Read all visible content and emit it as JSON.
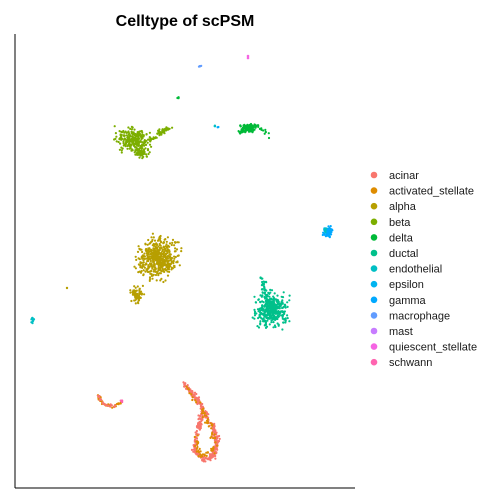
{
  "chart_data": {
    "type": "scatter",
    "title": "Celltype of scPSM",
    "xlabel": "",
    "ylabel": "",
    "grid": false,
    "legend_position": "right",
    "series": [
      {
        "name": "acinar",
        "color": "#F8766D"
      },
      {
        "name": "activated_stellate",
        "color": "#DE8C00"
      },
      {
        "name": "alpha",
        "color": "#B79F00"
      },
      {
        "name": "beta",
        "color": "#7CAE00"
      },
      {
        "name": "delta",
        "color": "#00BA38"
      },
      {
        "name": "ductal",
        "color": "#00C08B"
      },
      {
        "name": "endothelial",
        "color": "#00BFC4"
      },
      {
        "name": "epsilon",
        "color": "#00B4F0"
      },
      {
        "name": "gamma",
        "color": "#00A9FF"
      },
      {
        "name": "macrophage",
        "color": "#619CFF"
      },
      {
        "name": "mast",
        "color": "#C77CFF"
      },
      {
        "name": "quiescent_stellate",
        "color": "#F564E3"
      },
      {
        "name": "schwann",
        "color": "#FF64B0"
      }
    ]
  }
}
